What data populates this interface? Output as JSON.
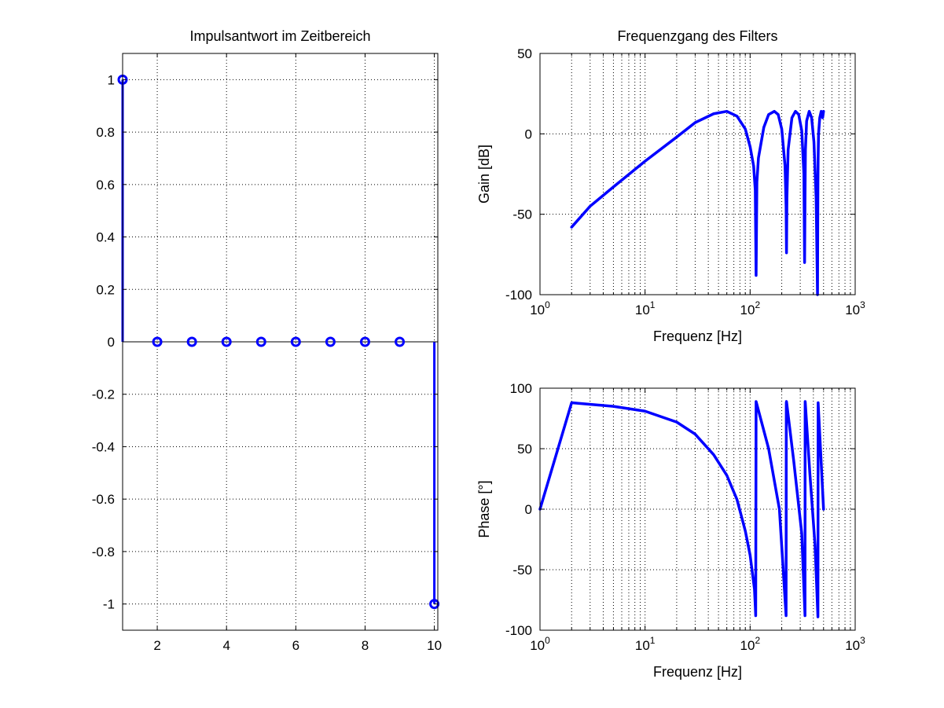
{
  "figure": {
    "background": "#ffffff",
    "line_color": "#0000ff",
    "axes_color": "#000000",
    "grid_color": "#000000"
  },
  "chart_data": [
    {
      "id": "impulse",
      "type": "stem",
      "title": "Impulsantwort im Zeitbereich",
      "xlabel": "",
      "ylabel": "",
      "xlim": [
        1,
        10.1
      ],
      "ylim": [
        -1.1,
        1.1
      ],
      "xscale": "linear",
      "grid": true,
      "x": [
        1,
        2,
        3,
        4,
        5,
        6,
        7,
        8,
        9,
        10
      ],
      "y": [
        1,
        0,
        0,
        0,
        0,
        0,
        0,
        0,
        0,
        -1
      ],
      "xticks": [
        2,
        4,
        6,
        8,
        10
      ],
      "xtick_labels": [
        "2",
        "4",
        "6",
        "8",
        "10"
      ],
      "yticks": [
        1,
        0.8,
        0.6,
        0.4,
        0.2,
        0,
        -0.2,
        -0.4,
        -0.6,
        -0.8,
        -1
      ],
      "ytick_labels": [
        "1",
        "0.8",
        "0.6",
        "0.4",
        "0.2",
        "0",
        "-0.2",
        "-0.4",
        "-0.6",
        "-0.8",
        "-1"
      ]
    },
    {
      "id": "gain",
      "type": "line",
      "title": "Frequenzgang des Filters",
      "xlabel": "Frequenz [Hz]",
      "ylabel": "Gain [dB]",
      "xlim": [
        1,
        1000
      ],
      "ylim": [
        -100,
        50
      ],
      "xscale": "log",
      "grid": true,
      "x": [
        2,
        3,
        5,
        10,
        20,
        30,
        45,
        60,
        75,
        90,
        100,
        108,
        112,
        114,
        116,
        120,
        135,
        150,
        170,
        185,
        200,
        215,
        220,
        222,
        224,
        230,
        250,
        270,
        290,
        310,
        325,
        330,
        333,
        336,
        345,
        365,
        385,
        405,
        425,
        438,
        440,
        442,
        444,
        448,
        460,
        475,
        490,
        500
      ],
      "y": [
        -58,
        -45,
        -33,
        -17,
        -2,
        7,
        12.5,
        14,
        11,
        3,
        -8,
        -20,
        -35,
        -88,
        -30,
        -15,
        4,
        12,
        14,
        12,
        3,
        -20,
        -45,
        -74,
        -40,
        -10,
        10,
        14,
        12,
        2,
        -25,
        -80,
        -40,
        -10,
        8,
        14,
        10,
        -5,
        -40,
        -100,
        -60,
        -30,
        -15,
        0,
        10,
        14,
        10,
        14
      ],
      "xtick_labels": [
        "10^0",
        "10^1",
        "10^2",
        "10^3"
      ],
      "yticks": [
        50,
        0,
        -50,
        -100
      ],
      "ytick_labels": [
        "50",
        "0",
        "-50",
        "-100"
      ]
    },
    {
      "id": "phase",
      "type": "line",
      "title": "",
      "xlabel": "Frequenz [Hz]",
      "ylabel": "Phase [°]",
      "xlim": [
        1,
        1000
      ],
      "ylim": [
        -100,
        100
      ],
      "xscale": "log",
      "grid": true,
      "x": [
        1,
        2,
        5,
        10,
        20,
        30,
        45,
        60,
        75,
        90,
        100,
        110,
        112,
        113,
        114,
        150,
        190,
        220,
        221,
        222,
        260,
        310,
        333,
        334,
        335,
        370,
        415,
        442,
        443,
        444,
        500
      ],
      "y": [
        0,
        88,
        85,
        81,
        72,
        62,
        45,
        28,
        8,
        -18,
        -38,
        -66,
        -80,
        -88,
        89,
        50,
        0,
        -88,
        88,
        89,
        40,
        -20,
        -88,
        89,
        88,
        30,
        -30,
        -89,
        0,
        88,
        0
      ],
      "xtick_labels": [
        "10^0",
        "10^1",
        "10^2",
        "10^3"
      ],
      "yticks": [
        100,
        50,
        0,
        -50,
        -100
      ],
      "ytick_labels": [
        "100",
        "50",
        "0",
        "-50",
        "-100"
      ]
    }
  ]
}
